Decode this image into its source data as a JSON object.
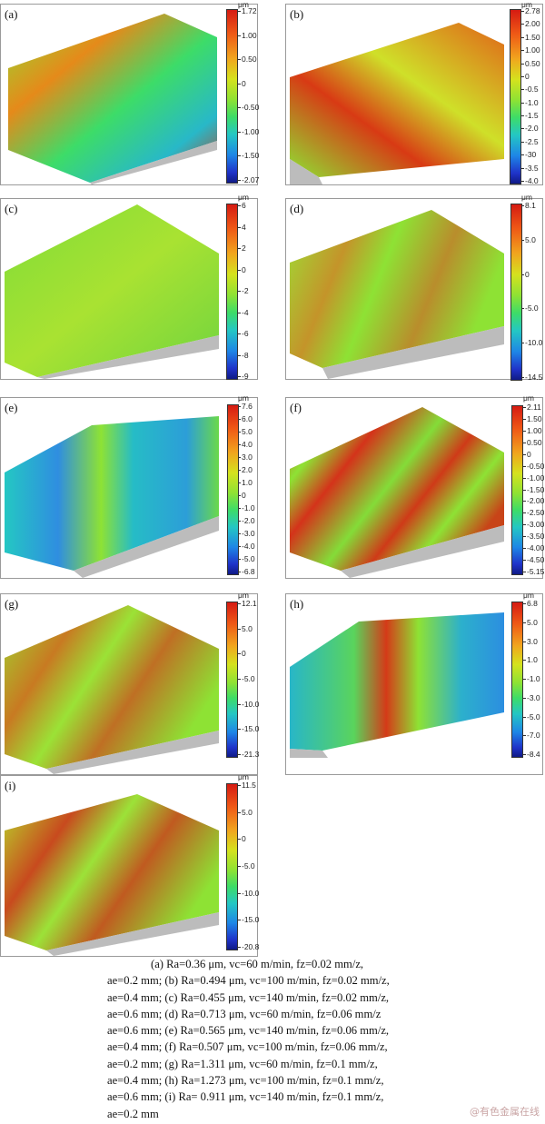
{
  "unit": "μm",
  "panels": [
    {
      "label": "(a)",
      "ticks": [
        "1.72",
        "1.00",
        "0.50",
        "0",
        "-0.50",
        "-1.00",
        "-1.50",
        "-2.07"
      ]
    },
    {
      "label": "(b)",
      "ticks": [
        "2.78",
        "2.00",
        "1.50",
        "1.00",
        "0.50",
        "0",
        "-0.5",
        "-1.0",
        "-1.5",
        "-2.0",
        "-2.5",
        "-30",
        "-3.5",
        "-4.0"
      ]
    },
    {
      "label": "(c)",
      "ticks": [
        "6",
        "4",
        "2",
        "0",
        "-2",
        "-4",
        "-6",
        "-8",
        "-9"
      ]
    },
    {
      "label": "(d)",
      "ticks": [
        "8.1",
        "5.0",
        "0",
        "-5.0",
        "-10.0",
        "-14.5"
      ]
    },
    {
      "label": "(e)",
      "ticks": [
        "7.6",
        "6.0",
        "5.0",
        "4.0",
        "3.0",
        "2.0",
        "1.0",
        "0",
        "-1.0",
        "-2.0",
        "-3.0",
        "-4.0",
        "-5.0",
        "-6.8"
      ]
    },
    {
      "label": "(f)",
      "ticks": [
        "2.11",
        "1.50",
        "1.00",
        "0.50",
        "0",
        "-0.50",
        "-1.00",
        "-1.50",
        "-2.00",
        "-2.50",
        "-3.00",
        "-3.50",
        "-4.00",
        "-4.50",
        "-5.15"
      ]
    },
    {
      "label": "(g)",
      "ticks": [
        "12.1",
        "5.0",
        "0",
        "-5.0",
        "-10.0",
        "-15.0",
        "-21.3"
      ]
    },
    {
      "label": "(h)",
      "ticks": [
        "6.8",
        "5.0",
        "3.0",
        "1.0",
        "-1.0",
        "-3.0",
        "-5.0",
        "-7.0",
        "-8.4"
      ]
    },
    {
      "label": "(i)",
      "ticks": [
        "11.5",
        "5.0",
        "0",
        "-5.0",
        "-10.0",
        "-15.0",
        "-20.8"
      ]
    }
  ],
  "caption": {
    "lines": [
      "(a)  Ra=0.36  μm,  vc=60  m/min,  fz=0.02  mm/z,",
      "ae=0.2 mm; (b) Ra=0.494 μm, vc=100 m/min, fz=0.02 mm/z,",
      "ae=0.4 mm; (c) Ra=0.455 μm, vc=140 m/min, fz=0.02 mm/z,",
      "ae=0.6 mm; (d) Ra=0.713 μm, vc=60 m/min, fz=0.06 mm/z",
      "ae=0.6 mm; (e) Ra=0.565 μm, vc=140 m/min, fz=0.06 mm/z,",
      "ae=0.4 mm; (f) Ra=0.507 μm, vc=100 m/min, fz=0.06 mm/z,",
      "ae=0.2 mm; (g) Ra=1.311 μm, vc=60 m/min, fz=0.1 mm/z,",
      "ae=0.4 mm; (h) Ra=1.273 μm, vc=100 m/min, fz=0.1 mm/z,",
      "ae=0.6 mm; (i) Ra= 0.911 μm, vc=140 m/min, fz=0.1 mm/z,",
      "ae=0.2 mm"
    ]
  },
  "watermark": "@有色金属在线",
  "colors": {
    "high": "#d51b12",
    "mid": "#8ee234",
    "low": "#101a86",
    "base": "#b9b9b9"
  }
}
